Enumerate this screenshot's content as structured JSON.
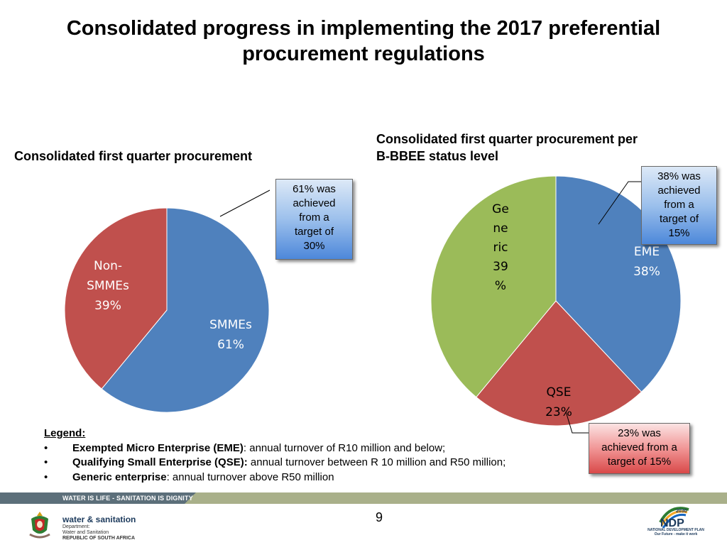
{
  "slide": {
    "title_line1": "Consolidated progress in implementing the 2017 preferential",
    "title_line2": "procurement regulations",
    "page_number": "9"
  },
  "chart_data": [
    {
      "type": "pie",
      "title": "Consolidated first quarter procurement",
      "slices": [
        {
          "label_lines": [
            "SMMEs",
            "61%"
          ],
          "value": 61,
          "color": "#4f81bd"
        },
        {
          "label_lines": [
            "Non-",
            "SMMEs",
            "39%"
          ],
          "value": 39,
          "color": "#c0504d"
        }
      ],
      "callout": {
        "lines": [
          "61% was",
          "achieved",
          "from a",
          "target of",
          "30%"
        ],
        "color": "#4f81bd"
      }
    },
    {
      "type": "pie",
      "title_line1": "Consolidated  first quarter procurement per",
      "title_line2": "B-BBEE status level",
      "slices": [
        {
          "label_lines": [
            "EME",
            "38%"
          ],
          "value": 38,
          "color": "#4f81bd"
        },
        {
          "label_lines": [
            "QSE",
            "23%"
          ],
          "value": 23,
          "color": "#c0504d"
        },
        {
          "label_lines": [
            "Ge",
            "ne",
            "ric",
            "39",
            "%"
          ],
          "value": 39,
          "color": "#9bbb59"
        }
      ],
      "callouts": [
        {
          "lines": [
            "38% was",
            "achieved",
            "from a",
            "target of",
            "15%"
          ],
          "color": "#4f81bd"
        },
        {
          "lines": [
            "23% was",
            "achieved from a",
            "target of 15%"
          ],
          "color": "#c0504d"
        }
      ]
    }
  ],
  "legend": {
    "title": "Legend:",
    "items": [
      {
        "term": "Exempted Micro Enterprise (EME)",
        "desc": ": annual turnover of R10 million and below;"
      },
      {
        "term": "Qualifying Small Enterprise (QSE):",
        "desc": " annual turnover between R 10 million and R50 million;"
      },
      {
        "term": "Generic enterprise",
        "desc": ": annual turnover above R50 million"
      }
    ]
  },
  "footer": {
    "slogan": "WATER IS LIFE - SANITATION IS DIGNITY",
    "dept_brand": "water & sanitation",
    "dept_line1": "Department:",
    "dept_line2": "Water and Sanitation",
    "dept_line3": "REPUBLIC OF SOUTH AFRICA",
    "ndp_year": "2030",
    "ndp_logo": "NDP",
    "ndp_line1": "NATIONAL DEVELOPMENT PLAN",
    "ndp_line2": "Our Future - make it work"
  }
}
